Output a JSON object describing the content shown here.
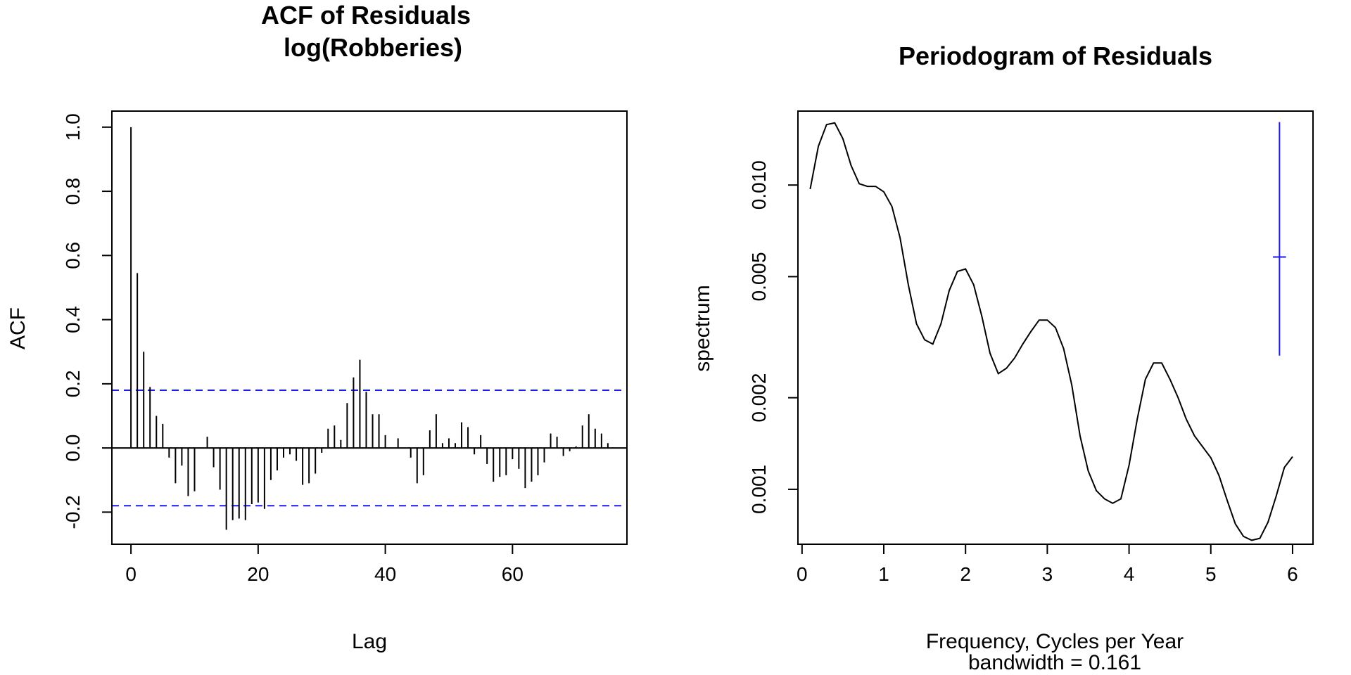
{
  "colors": {
    "ink": "#000000",
    "confidence": "#1a1aee",
    "bandwidth_marker": "#1a1aee"
  },
  "chart_data": [
    {
      "type": "bar",
      "subtype": "acf",
      "title": "ACF of Residuals",
      "subtitle": "log(Robberies)",
      "xlabel": "Lag",
      "ylabel": "ACF",
      "xlim": [
        -3,
        78
      ],
      "ylim": [
        -0.3,
        1.05
      ],
      "xticks": [
        0,
        20,
        40,
        60
      ],
      "yticks": [
        -0.2,
        0.0,
        0.2,
        0.4,
        0.6,
        0.8,
        1.0
      ],
      "ytick_labels": [
        "-0.2",
        "0.0",
        "0.2",
        "0.4",
        "0.6",
        "0.8",
        "1.0"
      ],
      "confidence_bounds": [
        0.18,
        -0.18
      ],
      "lags": [
        0,
        1,
        2,
        3,
        4,
        5,
        6,
        7,
        8,
        9,
        10,
        11,
        12,
        13,
        14,
        15,
        16,
        17,
        18,
        19,
        20,
        21,
        22,
        23,
        24,
        25,
        26,
        27,
        28,
        29,
        30,
        31,
        32,
        33,
        34,
        35,
        36,
        37,
        38,
        39,
        40,
        41,
        42,
        43,
        44,
        45,
        46,
        47,
        48,
        49,
        50,
        51,
        52,
        53,
        54,
        55,
        56,
        57,
        58,
        59,
        60,
        61,
        62,
        63,
        64,
        65,
        66,
        67,
        68,
        69,
        70,
        71,
        72,
        73,
        74,
        75
      ],
      "values": [
        1.0,
        0.545,
        0.3,
        0.19,
        0.1,
        0.075,
        -0.03,
        -0.11,
        -0.055,
        -0.15,
        -0.135,
        0.0,
        0.035,
        -0.06,
        -0.13,
        -0.255,
        -0.225,
        -0.22,
        -0.225,
        -0.175,
        -0.17,
        -0.19,
        -0.1,
        -0.07,
        -0.03,
        -0.02,
        -0.04,
        -0.115,
        -0.11,
        -0.08,
        -0.015,
        0.06,
        0.07,
        0.025,
        0.14,
        0.22,
        0.275,
        0.175,
        0.105,
        0.105,
        0.04,
        0.0,
        0.03,
        0.0,
        -0.03,
        -0.11,
        -0.085,
        0.055,
        0.105,
        0.015,
        0.03,
        0.015,
        0.08,
        0.065,
        -0.02,
        0.04,
        -0.05,
        -0.105,
        -0.09,
        -0.085,
        -0.035,
        -0.065,
        -0.125,
        -0.105,
        -0.085,
        -0.045,
        0.045,
        0.035,
        -0.025,
        -0.01,
        0.005,
        0.07,
        0.105,
        0.06,
        0.045,
        0.015
      ]
    },
    {
      "type": "line",
      "subtype": "periodogram",
      "title": "Periodogram of Residuals",
      "xlabel": "Frequency, Cycles per Year",
      "footnote": "bandwidth = 0.161",
      "ylabel": "spectrum",
      "yscale": "log",
      "xlim": [
        -0.05,
        6.25
      ],
      "ylim": [
        0.00066,
        0.0175
      ],
      "xticks": [
        0,
        1,
        2,
        3,
        4,
        5,
        6
      ],
      "yticks": [
        0.001,
        0.002,
        0.005,
        0.01
      ],
      "ytick_labels": [
        "0.001",
        "0.002",
        "0.005",
        "0.010"
      ],
      "x": [
        0.1,
        0.2,
        0.3,
        0.4,
        0.5,
        0.6,
        0.7,
        0.8,
        0.9,
        1.0,
        1.1,
        1.2,
        1.3,
        1.4,
        1.5,
        1.6,
        1.7,
        1.8,
        1.9,
        2.0,
        2.1,
        2.2,
        2.3,
        2.4,
        2.5,
        2.6,
        2.7,
        2.8,
        2.9,
        3.0,
        3.1,
        3.2,
        3.3,
        3.4,
        3.5,
        3.6,
        3.7,
        3.8,
        3.9,
        4.0,
        4.1,
        4.2,
        4.3,
        4.4,
        4.5,
        4.6,
        4.7,
        4.8,
        4.9,
        5.0,
        5.1,
        5.2,
        5.3,
        5.4,
        5.5,
        5.6,
        5.7,
        5.8,
        5.9,
        6.0
      ],
      "y": [
        0.0097,
        0.0134,
        0.0158,
        0.016,
        0.0142,
        0.0116,
        0.0101,
        0.0099,
        0.0099,
        0.0095,
        0.0085,
        0.0067,
        0.0047,
        0.0035,
        0.0031,
        0.003,
        0.0035,
        0.0045,
        0.0052,
        0.0053,
        0.0047,
        0.0037,
        0.0028,
        0.0024,
        0.0025,
        0.0027,
        0.003,
        0.0033,
        0.0036,
        0.0036,
        0.0034,
        0.0029,
        0.0022,
        0.0015,
        0.00115,
        0.00099,
        0.00093,
        0.0009,
        0.00093,
        0.0012,
        0.0017,
        0.0023,
        0.0026,
        0.0026,
        0.0023,
        0.002,
        0.0017,
        0.0015,
        0.00138,
        0.00127,
        0.00111,
        0.00092,
        0.00077,
        0.0007,
        0.00068,
        0.00069,
        0.00078,
        0.00095,
        0.00118,
        0.00128
      ],
      "bandwidth_marker": {
        "x": 5.84,
        "y_low": 0.00275,
        "y_high": 0.0161,
        "y_center": 0.0058,
        "half_width": 0.08
      }
    }
  ]
}
